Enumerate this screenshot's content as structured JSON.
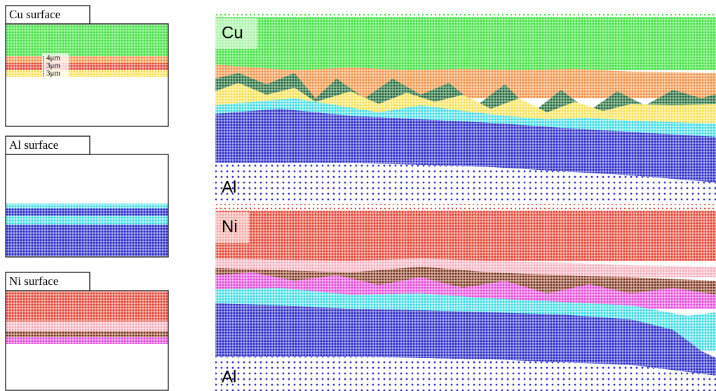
{
  "panels": [
    {
      "label": "Cu surface",
      "layers": [
        "4μm",
        "3μm",
        "3μm"
      ]
    },
    {
      "label": "Al surface"
    },
    {
      "label": "Ni surface"
    }
  ],
  "simulation": {
    "top": {
      "upper": "Cu",
      "lower": "Al"
    },
    "bottom": {
      "upper": "Ni",
      "lower": "Al"
    }
  }
}
